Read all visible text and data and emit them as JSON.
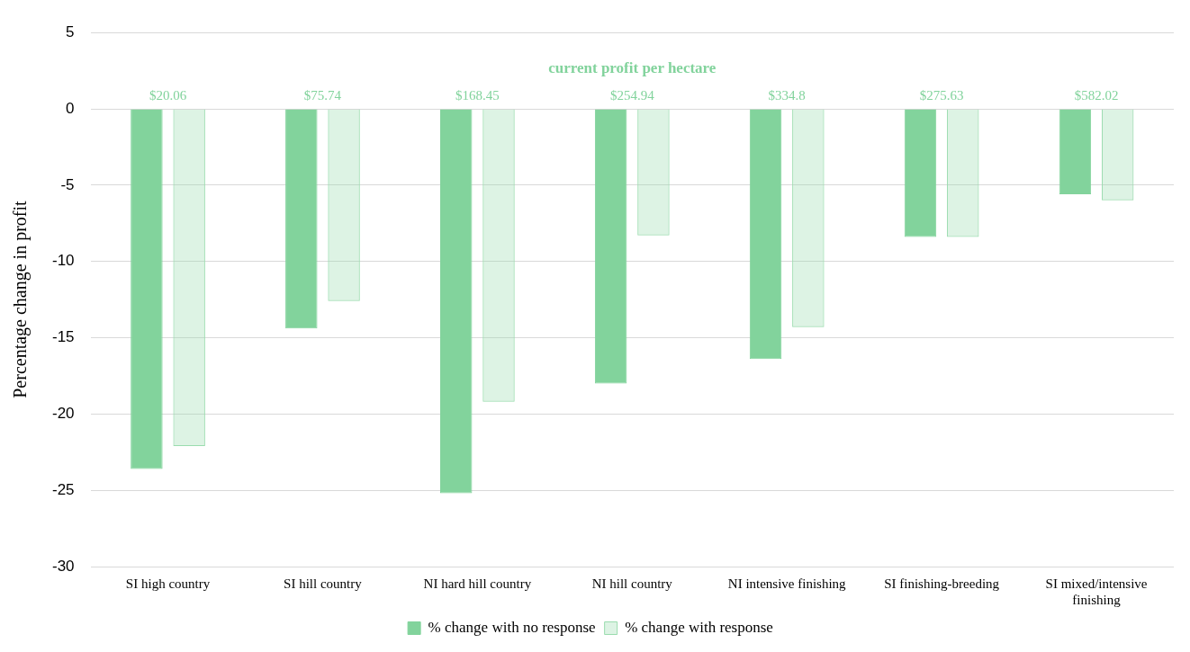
{
  "chart_data": {
    "type": "bar",
    "ylabel": "Percentage change in profit",
    "categories": [
      "SI high country",
      "SI hill country",
      "NI hard hill country",
      "NI hill country",
      "NI intensive finishing",
      "SI finishing-breeding",
      "SI mixed/intensive finishing"
    ],
    "series": [
      {
        "name": "% change with no response",
        "color": "#82d39c",
        "values": [
          -23.6,
          -14.4,
          -25.2,
          -18.0,
          -16.4,
          -8.4,
          -5.6
        ]
      },
      {
        "name": "% change with response",
        "color": "#9adcae",
        "values": [
          -22.1,
          -12.6,
          -19.2,
          -8.3,
          -14.3,
          -8.4,
          -6.0
        ]
      }
    ],
    "ylim": [
      -30,
      5
    ],
    "yticks": [
      -30,
      -25,
      -20,
      -15,
      -10,
      -5,
      0,
      5
    ],
    "grid": "y",
    "legend": "bottom",
    "annotations": [
      "current profit per hectare",
      "$20.06",
      "$75.74",
      "$168.45",
      "$254.94",
      "$334.8",
      "$275.63",
      "$582.02"
    ]
  }
}
